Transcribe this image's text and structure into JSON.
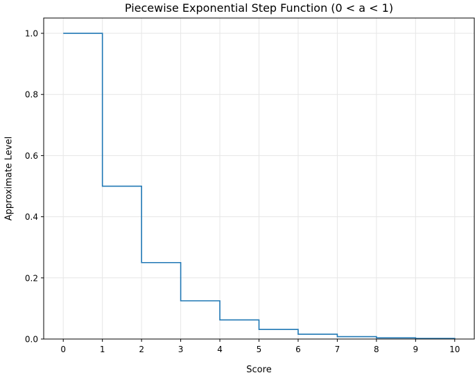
{
  "chart_data": {
    "type": "line",
    "drawstyle": "steps-post",
    "title": "Piecewise Exponential Step Function (0 < a < 1)",
    "xlabel": "Score",
    "ylabel": "Approximate Level",
    "xlim": [
      -0.5,
      10.5
    ],
    "ylim": [
      0.0,
      1.05
    ],
    "xticks": [
      0,
      1,
      2,
      3,
      4,
      5,
      6,
      7,
      8,
      9,
      10
    ],
    "xtick_labels": [
      "0",
      "1",
      "2",
      "3",
      "4",
      "5",
      "6",
      "7",
      "8",
      "9",
      "10"
    ],
    "yticks": [
      0.0,
      0.2,
      0.4,
      0.6,
      0.8,
      1.0
    ],
    "ytick_labels": [
      "0.0",
      "0.2",
      "0.4",
      "0.6",
      "0.8",
      "1.0"
    ],
    "grid": true,
    "series": [
      {
        "color": "#1f77b4",
        "x": [
          0,
          1,
          2,
          3,
          4,
          5,
          6,
          7,
          8,
          9,
          10
        ],
        "y": [
          1.0,
          0.5,
          0.25,
          0.125,
          0.0625,
          0.03125,
          0.015625,
          0.0078125,
          0.00390625,
          0.001953125,
          0.0009765625
        ]
      }
    ]
  }
}
